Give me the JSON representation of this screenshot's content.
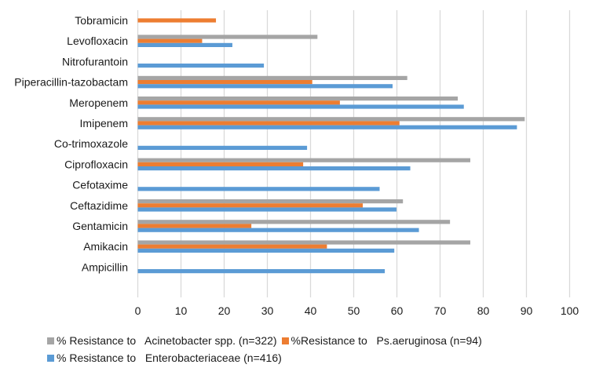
{
  "chart_data": {
    "type": "bar",
    "orientation": "horizontal",
    "title": "",
    "xlabel": "",
    "ylabel": "",
    "xlim": [
      0,
      100
    ],
    "x_ticks": [
      0,
      10,
      20,
      30,
      40,
      50,
      60,
      70,
      80,
      90,
      100
    ],
    "grid": true,
    "legend_position": "bottom",
    "categories": [
      "Tobramicin",
      "Levofloxacin",
      "Nitrofurantoin",
      "Piperacillin-tazobactam",
      "Meropenem",
      "Imipenem",
      "Co-trimoxazole",
      "Ciprofloxacin",
      "Cefotaxime",
      "Ceftazidime",
      "Gentamicin",
      "Amikacin",
      "Ampicillin"
    ],
    "series": [
      {
        "name": "% Resistance to   Acinetobacter spp. (n=322)",
        "color": "#a5a5a5",
        "values": [
          null,
          41.6,
          null,
          62.4,
          74.1,
          89.6,
          null,
          77.0,
          null,
          61.4,
          72.3,
          77.0,
          null
        ]
      },
      {
        "name": "%Resistance to   Ps.aeruginosa (n=94)",
        "color": "#ed7d31",
        "values": [
          18.1,
          14.9,
          null,
          40.4,
          46.8,
          60.6,
          null,
          38.3,
          null,
          52.1,
          26.3,
          43.8,
          null
        ]
      },
      {
        "name": "% Resistance to   Enterobacteriaceae (n=416)",
        "color": "#5b9bd5",
        "values": [
          null,
          21.9,
          29.2,
          59.0,
          75.5,
          87.8,
          39.2,
          63.1,
          56.0,
          59.9,
          65.1,
          59.4,
          57.2
        ]
      }
    ]
  }
}
